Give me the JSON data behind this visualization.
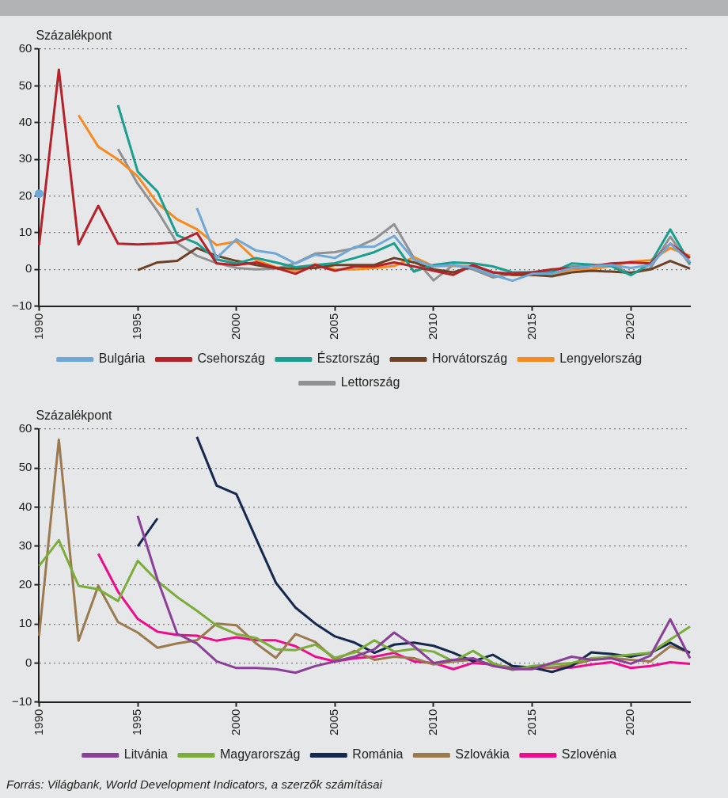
{
  "chart_data": [
    {
      "type": "line",
      "ylabel": "Százalékpont",
      "x": [
        1990,
        1991,
        1992,
        1993,
        1994,
        1995,
        1996,
        1997,
        1998,
        1999,
        2000,
        2001,
        2002,
        2003,
        2004,
        2005,
        2006,
        2007,
        2008,
        2009,
        2010,
        2011,
        2012,
        2013,
        2014,
        2015,
        2016,
        2017,
        2018,
        2019,
        2020,
        2021,
        2022,
        2023
      ],
      "series": [
        {
          "name": "Bulgária",
          "color": "#6fa8d6",
          "values": [
            20.6,
            null,
            null,
            null,
            null,
            null,
            null,
            null,
            16.7,
            3.1,
            8.2,
            5.1,
            4.3,
            1.6,
            4.0,
            3.1,
            6.1,
            6.2,
            9.1,
            2.7,
            0.8,
            1.2,
            0.4,
            -1.5,
            -3.1,
            -1.2,
            -1.2,
            0.4,
            0.8,
            1.2,
            0.4,
            1.2,
            7,
            2
          ]
        },
        {
          "name": "Csehország",
          "color": "#b5232a",
          "values": [
            6.6,
            54.4,
            6.8,
            17.3,
            7,
            6.8,
            7,
            7.4,
            9.9,
            1.6,
            1.2,
            1.9,
            0.4,
            -1.2,
            1.2,
            -0.4,
            0.8,
            0.8,
            1.9,
            0.8,
            -0.4,
            -1.5,
            1.2,
            -0.8,
            -1.2,
            -0.8,
            0,
            0.4,
            0.8,
            1.6,
            1.9,
            1.6,
            7,
            3.1
          ]
        },
        {
          "name": "Észtország",
          "color": "#1a9e8f",
          "values": [
            null,
            null,
            null,
            null,
            44.7,
            26.6,
            21.2,
            9.3,
            7.1,
            2.7,
            1.6,
            3.1,
            1.9,
            0.6,
            1.2,
            1.7,
            3.1,
            4.7,
            7.1,
            -0.6,
            1.2,
            1.9,
            1.6,
            0.8,
            -0.8,
            -0.8,
            -0.8,
            1.6,
            1.3,
            0.9,
            -1.6,
            1.6,
            10.9,
            1.6
          ]
        },
        {
          "name": "Horvátország",
          "color": "#6b4226",
          "values": [
            null,
            null,
            null,
            null,
            null,
            -0.2,
            1.9,
            2.3,
            5.8,
            3.7,
            2.3,
            1.2,
            0.4,
            0.2,
            0.4,
            1.2,
            1.2,
            1.2,
            3.1,
            1.9,
            0,
            -0.8,
            0.8,
            -0.8,
            -1.5,
            -1.5,
            -1.9,
            -0.8,
            -0.4,
            -0.6,
            -0.9,
            0,
            2.3,
            0.2
          ]
        },
        {
          "name": "Lengyelország",
          "color": "#f58a1f",
          "values": [
            null,
            null,
            42,
            33.4,
            29.9,
            25.3,
            18,
            13.6,
            10.9,
            6.6,
            7.6,
            2.5,
            0.6,
            -0.4,
            1.4,
            0,
            0,
            0.4,
            0.9,
            3.3,
            0.9,
            0.9,
            0.8,
            -0.8,
            -1.4,
            -1.6,
            -1.4,
            0,
            0,
            0.9,
            2.1,
            2.5,
            5.8,
            3.7
          ]
        },
        {
          "name": "Lettország",
          "color": "#8f9193",
          "values": [
            null,
            null,
            null,
            null,
            32.8,
            23.3,
            15.9,
            7.1,
            3.7,
            1.7,
            0.4,
            0,
            0.2,
            1.7,
            4.3,
            4.7,
            5.8,
            8.2,
            12.3,
            3.1,
            -3,
            1.2,
            0,
            -2.2,
            -1.2,
            -0.8,
            -0.2,
            0.8,
            0.8,
            1.3,
            -1.2,
            0.4,
            8.9,
            1.2
          ]
        }
      ],
      "xlim": [
        1990,
        2023
      ],
      "xticks": [
        1990,
        1995,
        2000,
        2005,
        2010,
        2015,
        2020
      ],
      "ylim": [
        -10,
        60
      ],
      "yticks": [
        {
          "value": -10,
          "label": "−10"
        },
        0,
        10,
        20,
        30,
        40,
        50,
        60
      ],
      "grid": "y",
      "legend": "bottom",
      "marker": "none",
      "line_style": "solid"
    },
    {
      "type": "line",
      "ylabel": "Százalékpont",
      "x": [
        1990,
        1991,
        1992,
        1993,
        1994,
        1995,
        1996,
        1997,
        1998,
        1999,
        2000,
        2001,
        2002,
        2003,
        2004,
        2005,
        2006,
        2007,
        2008,
        2009,
        2010,
        2011,
        2012,
        2013,
        2014,
        2015,
        2016,
        2017,
        2018,
        2019,
        2020,
        2021,
        2022,
        2023
      ],
      "series": [
        {
          "name": "Litvánia",
          "color": "#8a3f98",
          "values": [
            null,
            null,
            null,
            null,
            null,
            37.7,
            21.4,
            7.5,
            5,
            0.4,
            -1.3,
            -1.3,
            -1.6,
            -2.5,
            -0.8,
            0.4,
            1.6,
            3.5,
            7.8,
            4.3,
            0,
            0.8,
            1.2,
            -0.8,
            -1.6,
            -1.6,
            0,
            1.6,
            0.8,
            1.2,
            -0.2,
            1.9,
            11.2,
            1.2
          ]
        },
        {
          "name": "Magyarország",
          "color": "#7aad3a",
          "values": [
            24.9,
            31.5,
            19.8,
            18.9,
            15.9,
            26.2,
            21,
            16.9,
            13.4,
            9.6,
            7.4,
            6.4,
            3.5,
            3.3,
            4.7,
            1.3,
            2.7,
            5.8,
            2.9,
            3.6,
            2.9,
            0.4,
            3.1,
            0,
            -1.8,
            -0.8,
            -0.4,
            0,
            1.2,
            1.6,
            2.1,
            2.6,
            6,
            9.3
          ]
        },
        {
          "name": "Románia",
          "color": "#15284d",
          "values": [
            null,
            null,
            null,
            null,
            null,
            29.9,
            37.1,
            null,
            58,
            45.5,
            43.3,
            31.9,
            20.6,
            14.2,
            10.1,
            6.8,
            5.2,
            2.6,
            4.7,
            5.2,
            4.4,
            2.6,
            0.4,
            2.1,
            -0.8,
            -1.2,
            -2.3,
            -0.8,
            2.7,
            2.3,
            1.6,
            2.6,
            5.2,
            2.6
          ]
        },
        {
          "name": "Szlovákia",
          "color": "#9c7a4f",
          "values": [
            7,
            57.3,
            5.7,
            19.8,
            10.5,
            7.8,
            3.9,
            5,
            5.8,
            10.1,
            9.7,
            5,
            1.3,
            7.4,
            5.4,
            0.8,
            3.1,
            0.8,
            1.6,
            1.2,
            -0.4,
            0.4,
            0.8,
            -0.4,
            -1.2,
            -1.2,
            -1.2,
            -0.5,
            0.8,
            1.3,
            0.8,
            0.4,
            4.3,
            2.7
          ]
        },
        {
          "name": "Szlovénia",
          "color": "#ec0c8c",
          "values": [
            null,
            null,
            null,
            28,
            18.3,
            11.3,
            8,
            7.2,
            7,
            5.7,
            6.6,
            5.8,
            5.8,
            4.3,
            1.6,
            0.4,
            1.2,
            1.6,
            2.6,
            0.4,
            0,
            -1.6,
            0,
            -0.4,
            -1.3,
            -1.3,
            -1.2,
            -1.2,
            -0.4,
            0.2,
            -1.3,
            -0.8,
            0.2,
            -0.2
          ]
        }
      ],
      "xlim": [
        1990,
        2023
      ],
      "xticks": [
        1990,
        1995,
        2000,
        2005,
        2010,
        2015,
        2020
      ],
      "ylim": [
        -10,
        60
      ],
      "yticks": [
        {
          "value": -10,
          "label": "−10"
        },
        0,
        10,
        20,
        30,
        40,
        50,
        60
      ],
      "grid": "y",
      "legend": "bottom",
      "marker": "none",
      "line_style": "solid",
      "annotations": [
        "Forrás: Világbank, World Development Indicators, a szerzők számításai"
      ]
    }
  ]
}
